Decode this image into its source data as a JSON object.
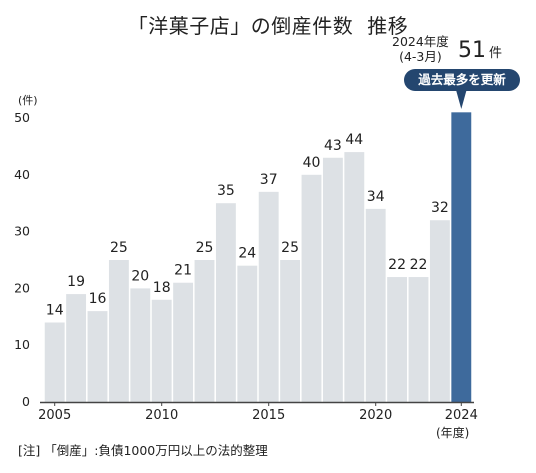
{
  "title_main": "「洋菓子店」の倒産件数",
  "title_sub": "推移",
  "unit_label": "(件)",
  "x_unit_label": "(年度)",
  "latest": {
    "period_line1": "2024年度",
    "period_line2": "(4-3月)",
    "value": "51",
    "unit": "件",
    "badge": "過去最多を更新"
  },
  "footnote": "[注] 「倒産」:負債1000万円以上の法的整理",
  "colors": {
    "bar": "#dde1e5",
    "highlight_bar": "#3e6a9c",
    "axis": "#444444",
    "badge": "#24466f",
    "text": "#222222"
  },
  "chart_data": {
    "type": "bar",
    "categories": [
      "2005",
      "2006",
      "2007",
      "2008",
      "2009",
      "2010",
      "2011",
      "2012",
      "2013",
      "2014",
      "2015",
      "2016",
      "2017",
      "2018",
      "2019",
      "2020",
      "2021",
      "2022",
      "2023",
      "2024"
    ],
    "values": [
      14,
      19,
      16,
      25,
      20,
      18,
      21,
      25,
      35,
      24,
      37,
      25,
      40,
      43,
      44,
      34,
      22,
      22,
      32,
      51
    ],
    "data_labels": [
      "14",
      "19",
      "16",
      "25",
      "20",
      "18",
      "21",
      "25",
      "35",
      "24",
      "37",
      "25",
      "40",
      "43",
      "44",
      "34",
      "22",
      "22",
      "32",
      ""
    ],
    "x_tick_labels": [
      "2005",
      "2010",
      "2015",
      "2020",
      "2024"
    ],
    "y_ticks": [
      0,
      10,
      20,
      30,
      40,
      50
    ],
    "ylim": [
      0,
      55
    ],
    "highlight_index": 19
  }
}
